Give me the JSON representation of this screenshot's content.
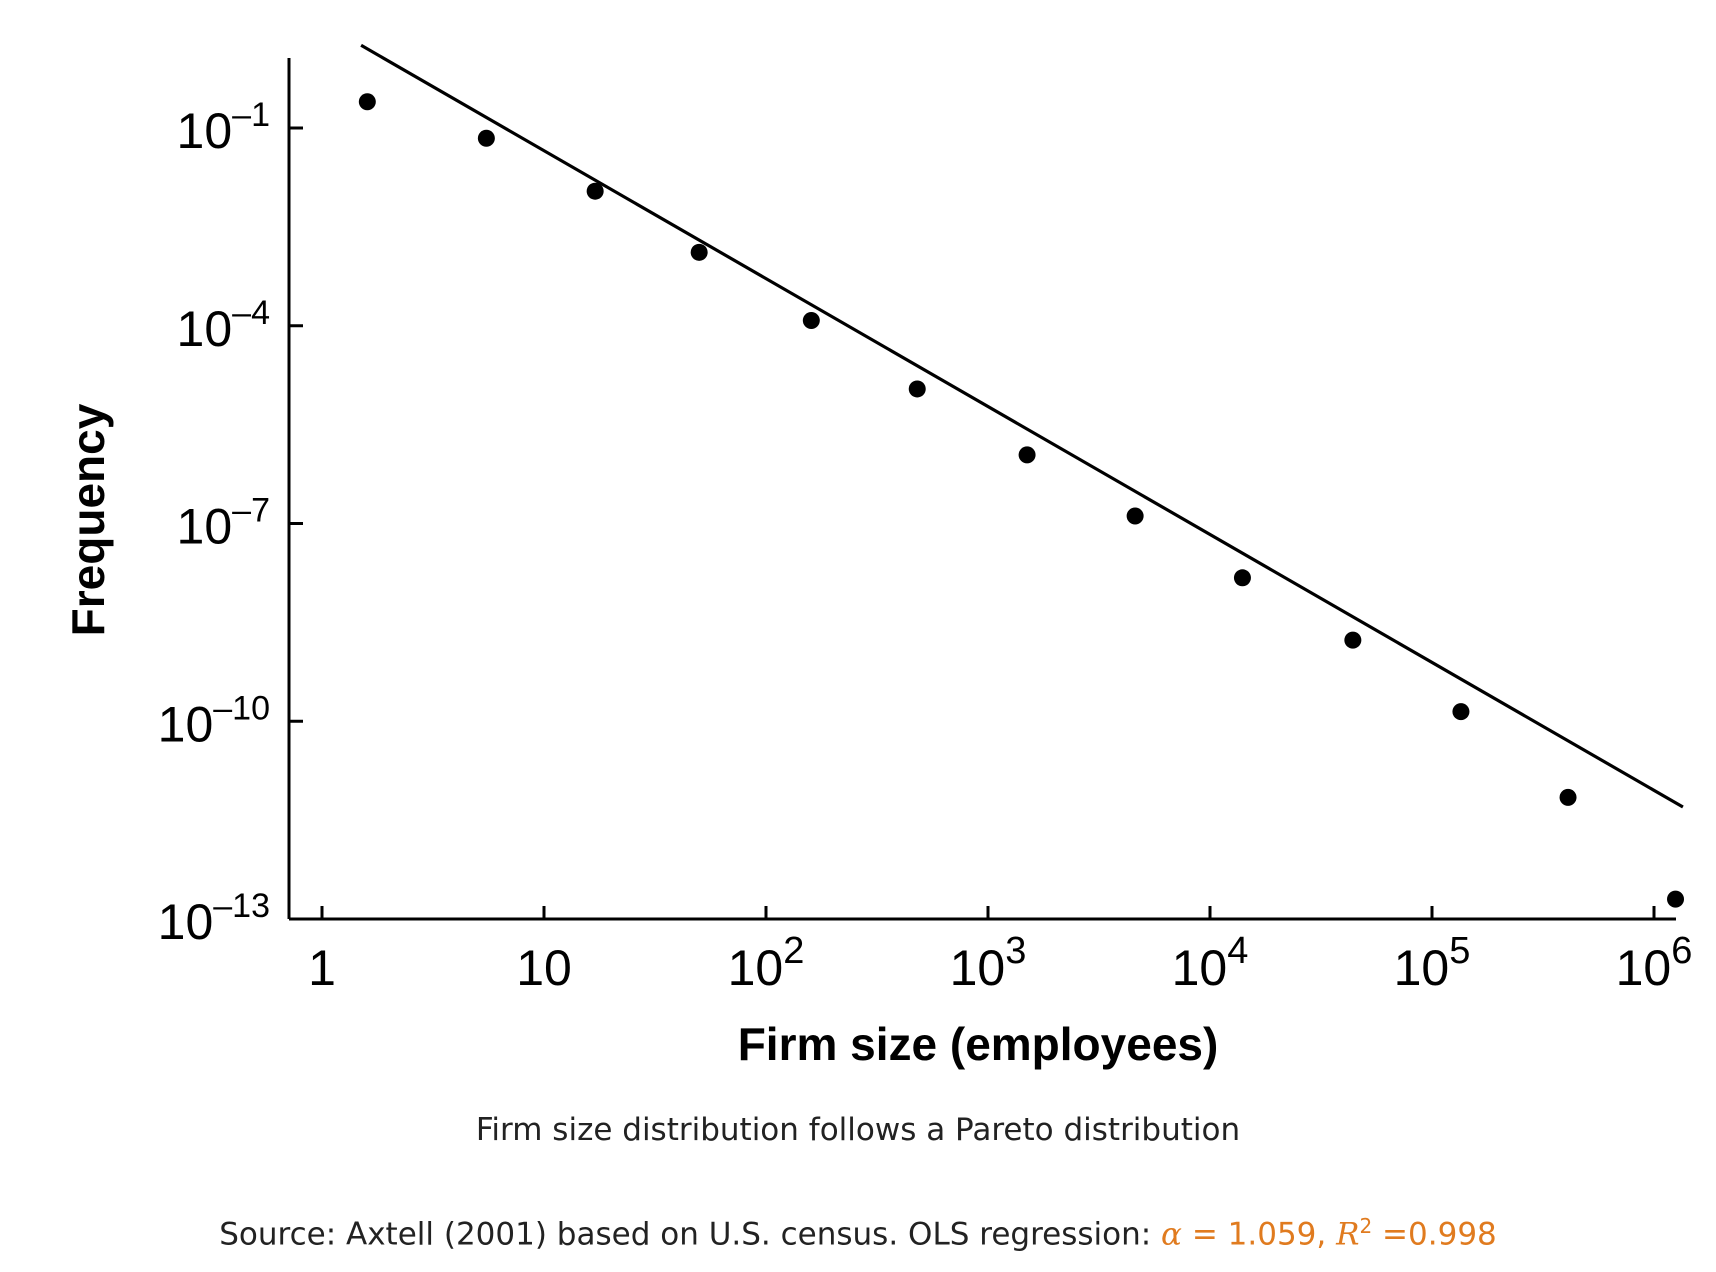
{
  "caption": "Firm size distribution follows a Pareto distribution",
  "source": {
    "prefix": "Source: Axtell (2001) based on U.S. census. OLS regression: ",
    "alpha_symbol": "α",
    "alpha_eq": " = 1.059, ",
    "r_symbol": "R",
    "r_exp": "2",
    "r_eq": " =0.998"
  },
  "colors": {
    "accent": "#e07b1f",
    "marks": "#000000"
  },
  "chart_data": {
    "type": "scatter",
    "xlabel": "Firm size (employees)",
    "ylabel": "Frequency",
    "x_scale": "log",
    "y_scale": "log",
    "xlim": [
      1,
      1000000
    ],
    "ylim": [
      1e-13,
      0.1
    ],
    "x_ticks": [
      {
        "value": 1,
        "base": "1",
        "exp": ""
      },
      {
        "value": 10,
        "base": "10",
        "exp": ""
      },
      {
        "value": 100,
        "base": "10",
        "exp": "2"
      },
      {
        "value": 1000,
        "base": "10",
        "exp": "3"
      },
      {
        "value": 10000,
        "base": "10",
        "exp": "4"
      },
      {
        "value": 100000,
        "base": "10",
        "exp": "5"
      },
      {
        "value": 1000000,
        "base": "10",
        "exp": "6"
      }
    ],
    "y_ticks": [
      {
        "value": 0.1,
        "base": "10",
        "exp": "–1"
      },
      {
        "value": 0.0001,
        "base": "10",
        "exp": "–4"
      },
      {
        "value": 1e-07,
        "base": "10",
        "exp": "–7"
      },
      {
        "value": 1e-10,
        "base": "10",
        "exp": "–10"
      },
      {
        "value": 1e-13,
        "base": "10",
        "exp": "–13"
      }
    ],
    "points": [
      {
        "x": 1.6,
        "y": 0.25
      },
      {
        "x": 5.5,
        "y": 0.07
      },
      {
        "x": 17,
        "y": 0.011
      },
      {
        "x": 50,
        "y": 0.0013
      },
      {
        "x": 160,
        "y": 0.00012
      },
      {
        "x": 480,
        "y": 1.1e-05
      },
      {
        "x": 1500,
        "y": 1.1e-06
      },
      {
        "x": 4600,
        "y": 1.3e-07
      },
      {
        "x": 14000,
        "y": 1.5e-08
      },
      {
        "x": 44000,
        "y": 1.7e-09
      },
      {
        "x": 135000,
        "y": 1.4e-10
      },
      {
        "x": 410000,
        "y": 7e-12
      },
      {
        "x": 1250000,
        "y": 2e-13
      }
    ],
    "fit_line": {
      "alpha": 1.059,
      "r_squared": 0.998,
      "x_range": [
        1.5,
        1350000
      ],
      "y_range": [
        1.8,
        5e-12
      ]
    }
  }
}
